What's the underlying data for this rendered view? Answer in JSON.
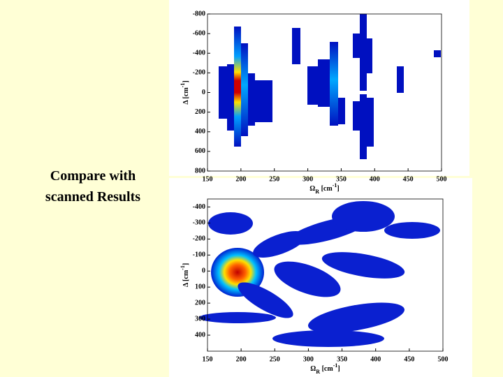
{
  "caption": [
    "Compare with",
    "scanned Results"
  ],
  "plots": [
    {
      "xlim": [
        150,
        500
      ],
      "ylim": [
        -800,
        800
      ],
      "xticks": [
        150,
        200,
        250,
        300,
        350,
        400,
        450,
        500
      ],
      "yticks": [
        -800,
        -600,
        -400,
        -200,
        0,
        200,
        400,
        600,
        800
      ],
      "x_label": {
        "symbol": "Ω",
        "sub": "R",
        "unit": " [cm",
        "sup": "-1",
        "end": "]"
      },
      "y_label": {
        "symbol": "Δ",
        "unit": " [cm",
        "sup": "-1",
        "end": "]"
      }
    },
    {
      "xlim": [
        150,
        500
      ],
      "ylim": [
        -450,
        500
      ],
      "xticks": [
        150,
        200,
        250,
        300,
        350,
        400,
        450,
        500
      ],
      "yticks": [
        -400,
        -300,
        -200,
        -100,
        0,
        100,
        200,
        300,
        400
      ],
      "x_label": {
        "symbol": "Ω",
        "sub": "R",
        "unit": " [cm",
        "sup": "-1",
        "end": "]"
      },
      "y_label": {
        "symbol": "Δ",
        "unit": " [cm",
        "sup": "-1",
        "end": "]"
      }
    }
  ]
}
